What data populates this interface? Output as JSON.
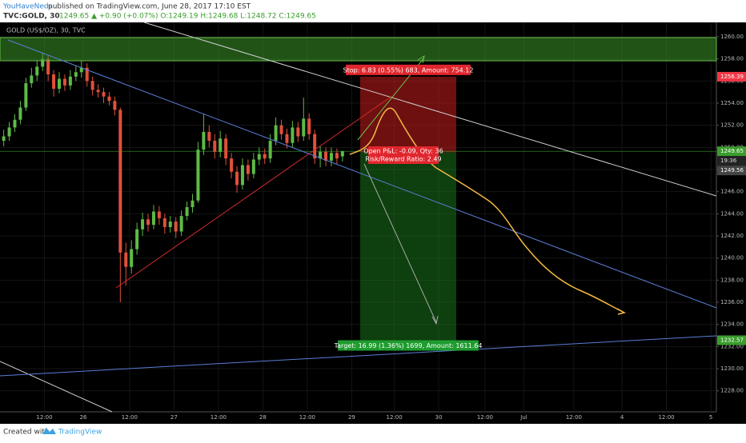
{
  "header": {
    "author": "YouHaveNeds",
    "published": "published on TradingView.com, June 28, 2017 17:10 EST",
    "symbol": "TVC:GOLD, 30",
    "quote": "1249.65 ▲ +0.90 (+0.07%) O:1249.19 H:1249.68 L:1248.72 C:1249.65"
  },
  "footer": {
    "created": "Created with",
    "brand": "TradingView"
  },
  "chart_data": {
    "type": "candlestick",
    "title": "GOLD (US$/OZ), 30, TVC",
    "up_color": "#5dbb46",
    "down_color": "#e0503c",
    "x": [
      1,
      2.5,
      4,
      5.5,
      7,
      8.5,
      10,
      11.5,
      13,
      14.5,
      16,
      17.5,
      19,
      20.5,
      22,
      23.5,
      25,
      26.5,
      28,
      29.5,
      31,
      32.5,
      34,
      35.5,
      37,
      38.5,
      40,
      41.5,
      43,
      44.5,
      46,
      47.5,
      49,
      50.5,
      52,
      53.5,
      55,
      56.5,
      58,
      59.5,
      61,
      62.5,
      64,
      65.5,
      67,
      68.5,
      70,
      71.5,
      73,
      74.5,
      76,
      77.5,
      79,
      80.5,
      82,
      83.5,
      85,
      86.5,
      88,
      89.5,
      91,
      92.5
    ],
    "open": [
      1250.6,
      1251.0,
      1251.8,
      1252.5,
      1253.6,
      1255.8,
      1256.5,
      1257.3,
      1258.0,
      1256.6,
      1255.3,
      1256.2,
      1255.6,
      1256.4,
      1256.8,
      1257.2,
      1256.0,
      1255.2,
      1255.0,
      1254.6,
      1254.2,
      1253.4,
      1240.5,
      1239.2,
      1240.8,
      1242.6,
      1243.5,
      1243.0,
      1244.2,
      1243.6,
      1242.8,
      1243.3,
      1242.4,
      1243.8,
      1244.6,
      1245.2,
      1249.8,
      1251.4,
      1250.6,
      1249.6,
      1250.8,
      1249.0,
      1247.8,
      1246.6,
      1248.4,
      1247.6,
      1248.9,
      1249.4,
      1249.0,
      1250.6,
      1252.0,
      1251.2,
      1250.4,
      1251.8,
      1251.0,
      1252.6,
      1251.2,
      1249.0,
      1249.6,
      1248.8,
      1249.5,
      1249.19
    ],
    "high": [
      1251.6,
      1252.3,
      1253.0,
      1254.2,
      1256.3,
      1257.2,
      1257.9,
      1258.6,
      1258.3,
      1257.0,
      1256.8,
      1256.6,
      1257.0,
      1257.4,
      1257.8,
      1257.6,
      1256.4,
      1255.7,
      1255.4,
      1255.0,
      1254.6,
      1253.6,
      1241.4,
      1241.6,
      1243.2,
      1244.1,
      1244.0,
      1244.8,
      1244.7,
      1244.0,
      1243.8,
      1243.7,
      1244.3,
      1245.1,
      1245.8,
      1250.5,
      1253.0,
      1252.0,
      1251.2,
      1251.5,
      1251.2,
      1249.5,
      1248.3,
      1249.0,
      1248.9,
      1249.5,
      1250.0,
      1249.9,
      1251.2,
      1252.7,
      1252.5,
      1251.7,
      1252.4,
      1252.3,
      1254.5,
      1253.1,
      1251.6,
      1250.1,
      1250.0,
      1250.0,
      1249.9,
      1249.68
    ],
    "low": [
      1250.1,
      1250.6,
      1251.4,
      1252.1,
      1253.3,
      1255.4,
      1256.0,
      1256.9,
      1256.0,
      1254.6,
      1254.9,
      1255.1,
      1255.2,
      1256.0,
      1256.3,
      1255.5,
      1254.7,
      1254.5,
      1254.0,
      1253.8,
      1252.9,
      1236.0,
      1237.5,
      1238.6,
      1240.3,
      1242.0,
      1242.4,
      1242.6,
      1243.0,
      1242.2,
      1242.3,
      1241.8,
      1242.0,
      1243.4,
      1244.1,
      1245.0,
      1249.3,
      1250.0,
      1249.0,
      1249.1,
      1248.4,
      1247.2,
      1245.9,
      1246.2,
      1247.0,
      1247.2,
      1248.4,
      1248.5,
      1248.6,
      1250.2,
      1250.7,
      1249.9,
      1250.0,
      1250.5,
      1250.6,
      1250.7,
      1248.5,
      1248.2,
      1248.3,
      1248.3,
      1248.5,
      1248.72
    ],
    "close": [
      1251.0,
      1251.8,
      1252.5,
      1253.6,
      1255.8,
      1256.5,
      1257.3,
      1258.0,
      1256.6,
      1255.3,
      1256.2,
      1255.6,
      1256.4,
      1256.8,
      1257.2,
      1256.0,
      1255.2,
      1255.0,
      1254.6,
      1254.2,
      1253.4,
      1240.5,
      1239.2,
      1240.8,
      1242.6,
      1243.5,
      1243.0,
      1244.2,
      1243.6,
      1242.8,
      1243.3,
      1242.4,
      1243.8,
      1244.6,
      1245.2,
      1249.8,
      1251.4,
      1250.6,
      1249.6,
      1250.8,
      1249.0,
      1247.8,
      1246.6,
      1248.4,
      1247.6,
      1248.9,
      1249.4,
      1249.0,
      1250.6,
      1252.0,
      1251.2,
      1250.4,
      1251.8,
      1251.0,
      1252.6,
      1251.2,
      1249.0,
      1249.6,
      1248.8,
      1249.5,
      1249.0,
      1249.65
    ],
    "xlim": [
      0,
      193.5
    ],
    "xticks": [
      {
        "value": 12,
        "label": "12:00"
      },
      {
        "value": 22.5,
        "label": "26"
      },
      {
        "value": 35,
        "label": "12:00"
      },
      {
        "value": 47,
        "label": "27"
      },
      {
        "value": 59,
        "label": "12:00"
      },
      {
        "value": 71,
        "label": "28"
      },
      {
        "value": 83,
        "label": "12:00"
      },
      {
        "value": 95,
        "label": "29"
      },
      {
        "value": 106.5,
        "label": "12:00"
      },
      {
        "value": 118.5,
        "label": "30"
      },
      {
        "value": 131,
        "label": "12:00"
      },
      {
        "value": 141.5,
        "label": "Jul"
      },
      {
        "value": 155,
        "label": "12:00"
      },
      {
        "value": 168,
        "label": "4"
      },
      {
        "value": 180,
        "label": "12:00"
      },
      {
        "value": 192,
        "label": "5"
      }
    ],
    "ylim": [
      1226.1,
      1261.3
    ],
    "yticks": [
      {
        "value": 1228,
        "label": "1228.00"
      },
      {
        "value": 1230,
        "label": "1230.00"
      },
      {
        "value": 1232,
        "label": "1232.00"
      },
      {
        "value": 1234,
        "label": "1234.00"
      },
      {
        "value": 1236,
        "label": "1236.00"
      },
      {
        "value": 1238,
        "label": "1238.00"
      },
      {
        "value": 1240,
        "label": "1240.00"
      },
      {
        "value": 1242,
        "label": "1242.00"
      },
      {
        "value": 1244,
        "label": "1244.00"
      },
      {
        "value": 1246,
        "label": "1246.00"
      },
      {
        "value": 1248,
        "label": "1248.00"
      },
      {
        "value": 1250,
        "label": "1250.00"
      },
      {
        "value": 1252,
        "label": "1252.00"
      },
      {
        "value": 1254,
        "label": "1254.00"
      },
      {
        "value": 1256,
        "label": "1256.00"
      },
      {
        "value": 1258,
        "label": "1258.00"
      },
      {
        "value": 1260,
        "label": "1260.00"
      }
    ],
    "grid": true,
    "price_labels": [
      1256.39,
      1249.65,
      1249.56,
      1232.57
    ],
    "price_label_colors": [
      "#f23645",
      "#3a9d2c",
      "#444444",
      "#3a9d2c"
    ],
    "countdown": "19:36",
    "position": {
      "stop": 1256.39,
      "entry": 1249.56,
      "target": 1232.57
    },
    "annotations": {
      "stop": "Stop: 6.83 (0.55%) 683, Amount: 754.12",
      "pnl": "Open P&L: -0.09, Qty: 36",
      "ratio": "Risk/Reward Ratio: 2.49",
      "target": "Target: 16.99 (1.36%) 1699, Amount: 1611.64"
    }
  }
}
